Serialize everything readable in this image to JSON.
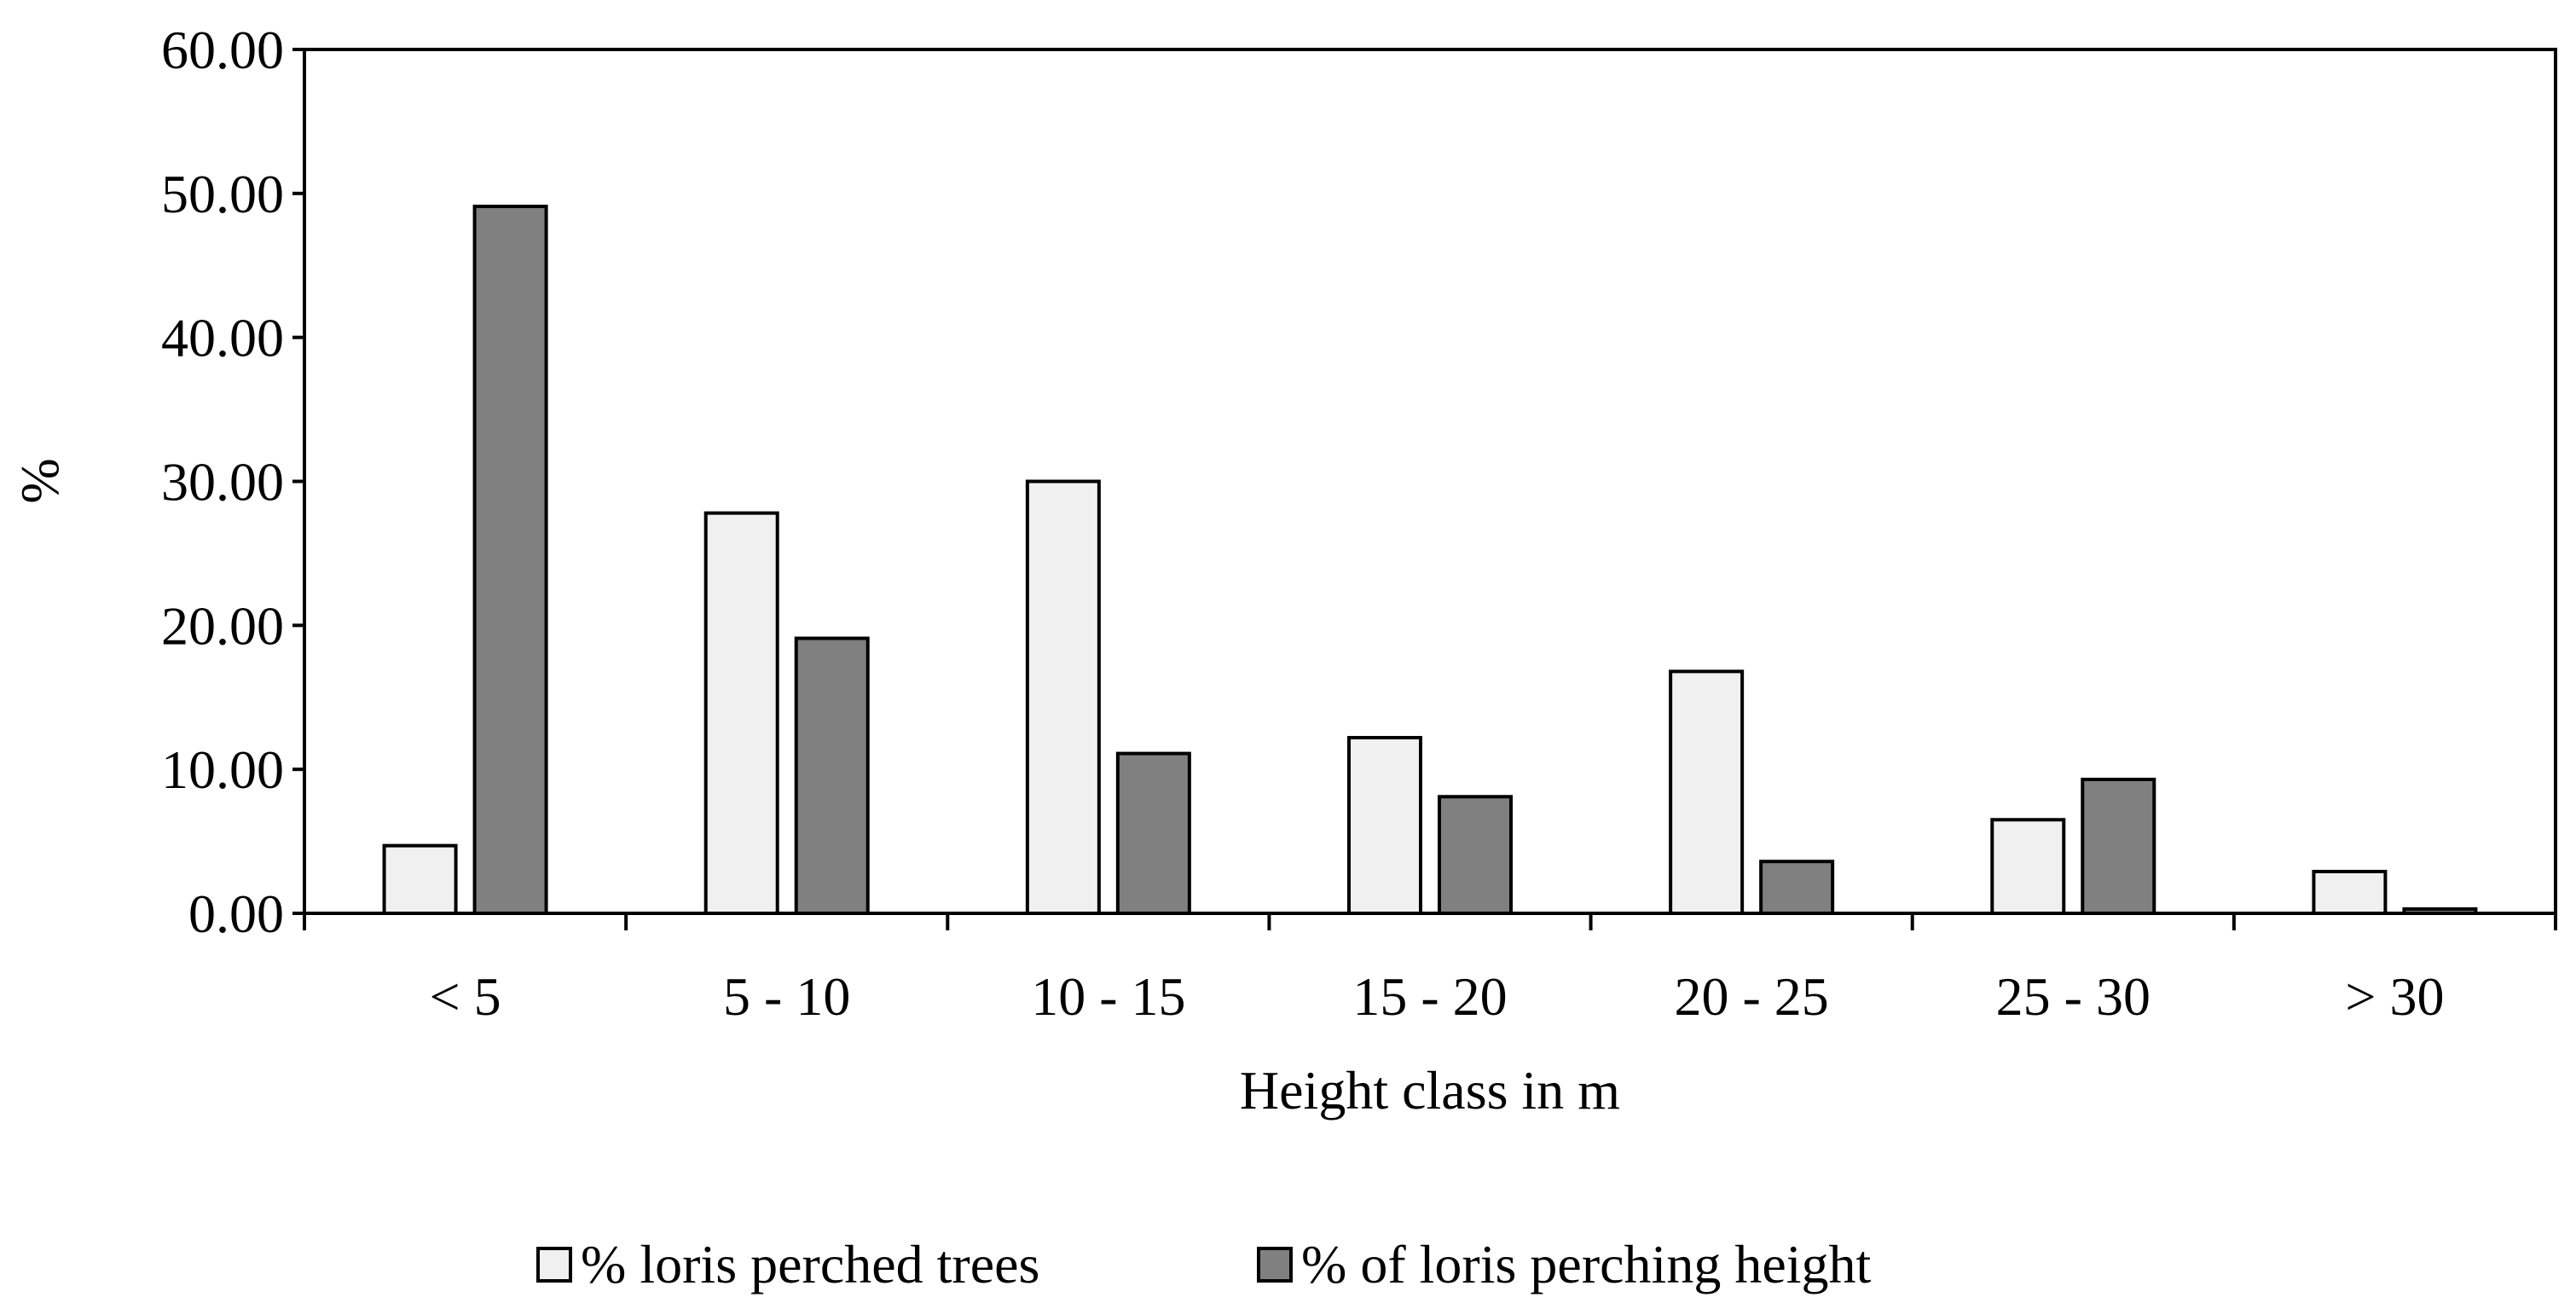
{
  "chart_data": {
    "type": "bar",
    "title": "",
    "xlabel": "Height class in m",
    "ylabel": "%",
    "ylim": [
      0,
      60
    ],
    "yticks": [
      "0.00",
      "10.00",
      "20.00",
      "30.00",
      "40.00",
      "50.00",
      "60.00"
    ],
    "grid": false,
    "legend_position": "bottom",
    "categories": [
      "< 5",
      "5 - 10",
      "10 - 15",
      "15 - 20",
      "20 - 25",
      "25 - 30",
      "> 30"
    ],
    "series": [
      {
        "name": "% loris perched trees",
        "color": "#f0f0f0",
        "values": [
          4.7,
          27.8,
          30.0,
          12.2,
          16.8,
          6.5,
          2.9
        ]
      },
      {
        "name": "% of loris perching height",
        "color": "#808080",
        "values": [
          49.1,
          19.1,
          11.1,
          8.1,
          3.6,
          9.3,
          0.3
        ]
      }
    ]
  }
}
